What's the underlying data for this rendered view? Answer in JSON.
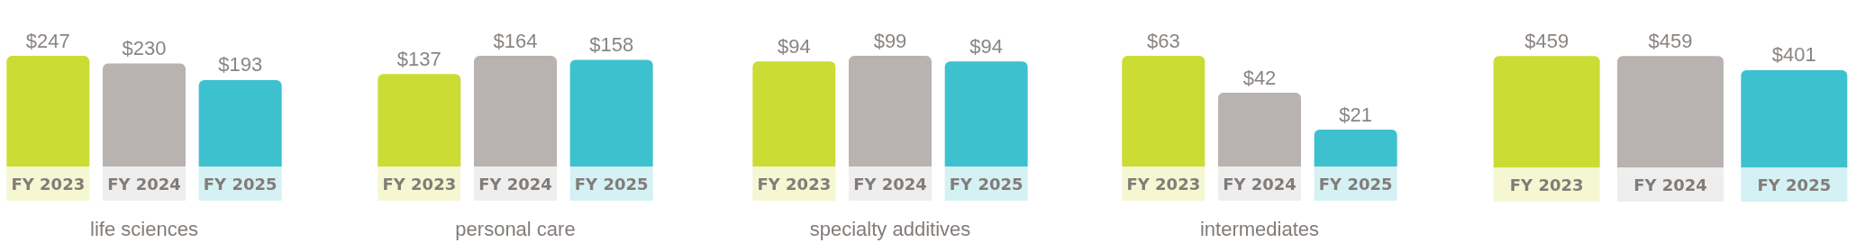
{
  "chart_data": [
    {
      "type": "bar",
      "xlabel": "life sciences",
      "categories": [
        "FY 2023",
        "FY 2024",
        "FY 2025"
      ],
      "values": [
        247,
        230,
        193
      ],
      "value_labels": [
        "$247",
        "$230",
        "$193"
      ],
      "colors": [
        "#cbdc34",
        "#b8b3b0",
        "#3dc1cf"
      ]
    },
    {
      "type": "bar",
      "xlabel": "personal care",
      "categories": [
        "FY 2023",
        "FY 2024",
        "FY 2025"
      ],
      "values": [
        137,
        164,
        158
      ],
      "value_labels": [
        "$137",
        "$164",
        "$158"
      ],
      "colors": [
        "#cbdc34",
        "#b8b3b0",
        "#3dc1cf"
      ]
    },
    {
      "type": "bar",
      "xlabel": "specialty additives",
      "categories": [
        "FY 2023",
        "FY 2024",
        "FY 2025"
      ],
      "values": [
        94,
        99,
        94
      ],
      "value_labels": [
        "$94",
        "$99",
        "$94"
      ],
      "colors": [
        "#cbdc34",
        "#b8b3b0",
        "#3dc1cf"
      ]
    },
    {
      "type": "bar",
      "xlabel": "intermediates",
      "categories": [
        "FY 2023",
        "FY 2024",
        "FY 2025"
      ],
      "values": [
        63,
        42,
        21
      ],
      "value_labels": [
        "$63",
        "$42",
        "$21"
      ],
      "colors": [
        "#cbdc34",
        "#b8b3b0",
        "#3dc1cf"
      ]
    },
    {
      "type": "bar",
      "categories": [
        "FY 2023",
        "FY 2024",
        "FY 2025"
      ],
      "values": [
        459,
        459,
        401
      ],
      "value_labels": [
        "$459",
        "$459",
        "$401"
      ],
      "colors": [
        "#cbdc34",
        "#b8b3b0",
        "#3dc1cf"
      ]
    }
  ]
}
